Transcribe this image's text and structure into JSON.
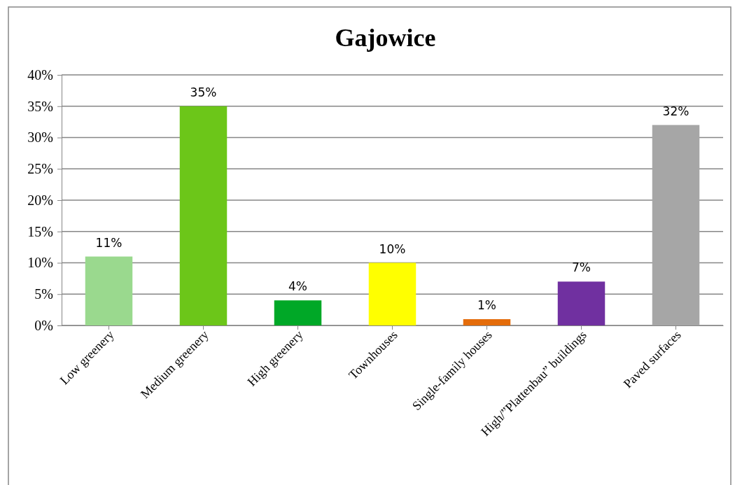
{
  "chart_data": {
    "type": "bar",
    "title": "Gajowice",
    "categories": [
      "Low greenery",
      "Medium greenery",
      "High greenery",
      "Townhouses",
      "Single-family houses",
      "High/”Plattenbau” buildings",
      "Paved surfaces"
    ],
    "values": [
      11,
      35,
      4,
      10,
      1,
      7,
      32
    ],
    "colors": [
      "#9ad98e",
      "#6cc619",
      "#00a827",
      "#ffff00",
      "#e46c0a",
      "#7030a0",
      "#a6a6a6"
    ],
    "value_labels": [
      "11%",
      "35%",
      "4%",
      "10%",
      "1%",
      "7%",
      "32%"
    ],
    "ylim": [
      0,
      40
    ],
    "yticks": [
      {
        "value": 0,
        "label": "0%"
      },
      {
        "value": 5,
        "label": "5%"
      },
      {
        "value": 10,
        "label": "10%"
      },
      {
        "value": 15,
        "label": "15%"
      },
      {
        "value": 20,
        "label": "20%"
      },
      {
        "value": 25,
        "label": "25%"
      },
      {
        "value": 30,
        "label": "30%"
      },
      {
        "value": 35,
        "label": "35%"
      },
      {
        "value": 40,
        "label": "40%"
      }
    ],
    "grid": "y"
  }
}
